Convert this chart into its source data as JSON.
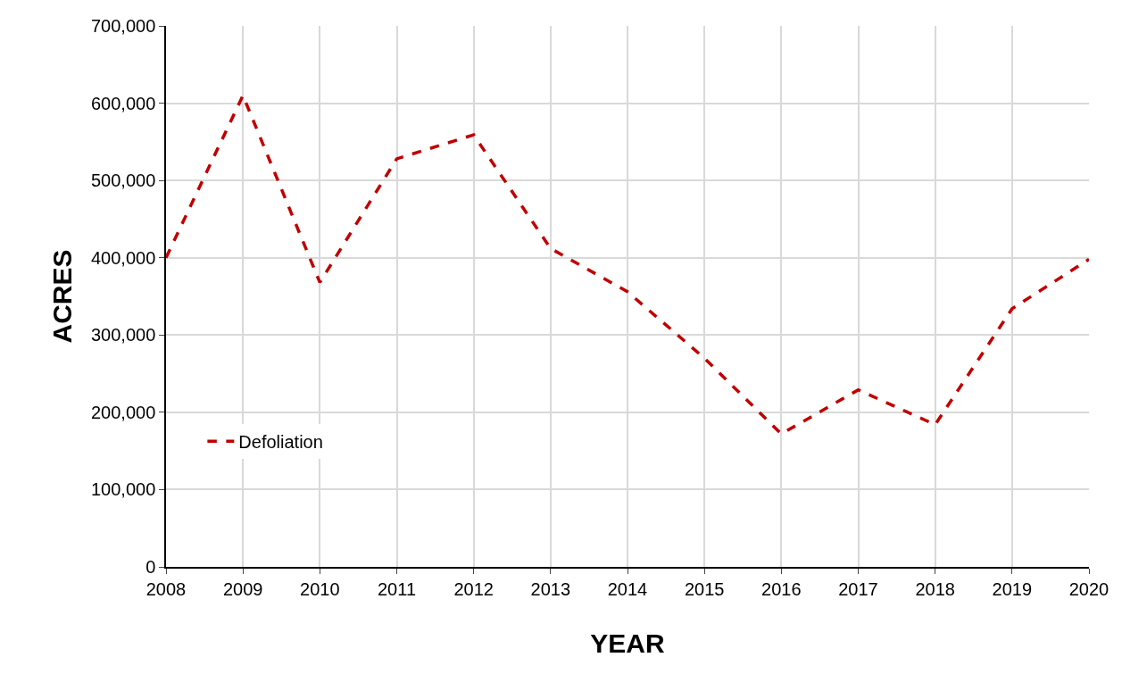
{
  "chart_data": {
    "type": "line",
    "xlabel": "YEAR",
    "ylabel": "ACRES",
    "x": [
      2008,
      2009,
      2010,
      2011,
      2012,
      2013,
      2014,
      2015,
      2016,
      2017,
      2018,
      2019,
      2020
    ],
    "series": [
      {
        "name": "Defoliation",
        "color": "#c00000",
        "values": [
          400000,
          610000,
          368000,
          528000,
          559000,
          412000,
          356000,
          270000,
          172000,
          229000,
          184000,
          334000,
          398000
        ]
      }
    ],
    "xlim": [
      2008,
      2020
    ],
    "xticks": [
      2008,
      2009,
      2010,
      2011,
      2012,
      2013,
      2014,
      2015,
      2016,
      2017,
      2018,
      2019,
      2020
    ],
    "ylim": [
      0,
      700000
    ],
    "yticks": [
      {
        "value": 0,
        "label": "0"
      },
      {
        "value": 100000,
        "label": "100,000"
      },
      {
        "value": 200000,
        "label": "200,000"
      },
      {
        "value": 300000,
        "label": "300,000"
      },
      {
        "value": 400000,
        "label": "400,000"
      },
      {
        "value": 500000,
        "label": "500,000"
      },
      {
        "value": 600000,
        "label": "600,000"
      },
      {
        "value": 700000,
        "label": "700,000"
      }
    ],
    "grid": true,
    "legend": "bottom left",
    "line_style": "dashed",
    "marker": "none"
  }
}
